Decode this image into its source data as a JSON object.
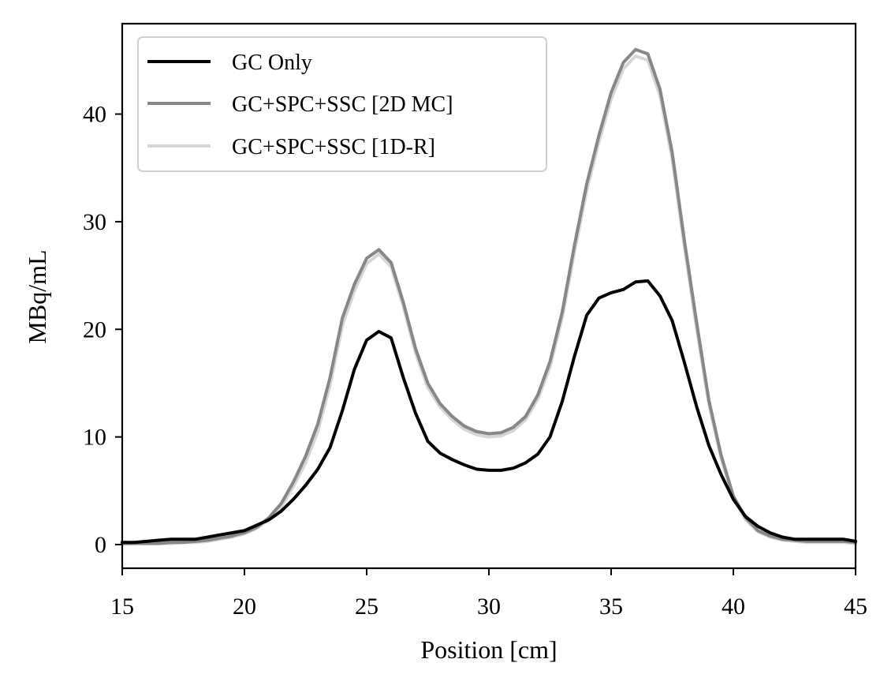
{
  "chart_data": {
    "type": "line",
    "title": "",
    "xlabel": "Position [cm]",
    "ylabel": "MBq/mL",
    "xlim": [
      15,
      45
    ],
    "ylim": [
      -2.2,
      48.4
    ],
    "xticks": [
      15,
      20,
      25,
      30,
      35,
      40,
      45
    ],
    "yticks": [
      0,
      10,
      20,
      30,
      40
    ],
    "grid": false,
    "legend_position": "top-left",
    "series": [
      {
        "name": "GC Only",
        "color": "#000000",
        "x": [
          15,
          15.5,
          16,
          16.5,
          17,
          17.5,
          18,
          18.5,
          19,
          19.5,
          20,
          20.5,
          21,
          21.5,
          22,
          22.5,
          23,
          23.5,
          24,
          24.5,
          25,
          25.5,
          26,
          26.5,
          27,
          27.5,
          28,
          28.5,
          29,
          29.5,
          30,
          30.5,
          31,
          31.5,
          32,
          32.5,
          33,
          33.5,
          34,
          34.5,
          35,
          35.5,
          36,
          36.5,
          37,
          37.5,
          38,
          38.5,
          39,
          39.5,
          40,
          40.5,
          41,
          41.5,
          42,
          42.5,
          43,
          43.5,
          44,
          44.5,
          45
        ],
        "y": [
          0.2,
          0.2,
          0.3,
          0.4,
          0.5,
          0.5,
          0.5,
          0.7,
          0.9,
          1.1,
          1.3,
          1.8,
          2.3,
          3.1,
          4.2,
          5.5,
          7.0,
          9.0,
          12.4,
          16.3,
          19.0,
          19.8,
          19.2,
          15.5,
          12.2,
          9.6,
          8.5,
          7.9,
          7.4,
          7.0,
          6.9,
          6.9,
          7.1,
          7.6,
          8.4,
          10.0,
          13.3,
          17.5,
          21.3,
          22.9,
          23.4,
          23.7,
          24.4,
          24.5,
          23.1,
          20.8,
          16.9,
          12.8,
          9.2,
          6.5,
          4.2,
          2.6,
          1.7,
          1.1,
          0.7,
          0.5,
          0.5,
          0.5,
          0.5,
          0.5,
          0.3
        ]
      },
      {
        "name": "GC+SPC+SSC [2D MC]",
        "color": "#878787",
        "x": [
          15,
          15.5,
          16,
          16.5,
          17,
          17.5,
          18,
          18.5,
          19,
          19.5,
          20,
          20.5,
          21,
          21.5,
          22,
          22.5,
          23,
          23.5,
          24,
          24.5,
          25,
          25.5,
          26,
          26.5,
          27,
          27.5,
          28,
          28.5,
          29,
          29.5,
          30,
          30.5,
          31,
          31.5,
          32,
          32.5,
          33,
          33.5,
          34,
          34.5,
          35,
          35.5,
          36,
          36.5,
          37,
          37.5,
          38,
          38.5,
          39,
          39.5,
          40,
          40.5,
          41,
          41.5,
          42,
          42.5,
          43,
          43.5,
          44,
          44.5,
          45
        ],
        "y": [
          0.1,
          0.1,
          0.1,
          0.1,
          0.2,
          0.2,
          0.3,
          0.4,
          0.6,
          0.8,
          1.1,
          1.6,
          2.5,
          3.8,
          5.8,
          8.2,
          11.2,
          15.5,
          21.0,
          24.2,
          26.6,
          27.4,
          26.2,
          22.5,
          18.2,
          15.0,
          13.1,
          11.9,
          11.0,
          10.5,
          10.3,
          10.4,
          10.9,
          11.9,
          13.9,
          17.0,
          21.6,
          27.8,
          33.5,
          38.0,
          42.0,
          44.8,
          46.0,
          45.6,
          42.3,
          36.4,
          28.2,
          20.6,
          13.4,
          8.3,
          4.5,
          2.5,
          1.3,
          0.8,
          0.5,
          0.4,
          0.3,
          0.3,
          0.3,
          0.3,
          0.2
        ]
      },
      {
        "name": "GC+SPC+SSC [1D-R]",
        "color": "#d6d6d6",
        "x": [
          15,
          15.5,
          16,
          16.5,
          17,
          17.5,
          18,
          18.5,
          19,
          19.5,
          20,
          20.5,
          21,
          21.5,
          22,
          22.5,
          23,
          23.5,
          24,
          24.5,
          25,
          25.5,
          26,
          26.5,
          27,
          27.5,
          28,
          28.5,
          29,
          29.5,
          30,
          30.5,
          31,
          31.5,
          32,
          32.5,
          33,
          33.5,
          34,
          34.5,
          35,
          35.5,
          36,
          36.5,
          37,
          37.5,
          38,
          38.5,
          39,
          39.5,
          40,
          40.5,
          41,
          41.5,
          42,
          42.5,
          43,
          43.5,
          44,
          44.5,
          45
        ],
        "y": [
          0.1,
          0.1,
          0.1,
          0.1,
          0.1,
          0.2,
          0.2,
          0.3,
          0.5,
          0.7,
          1.0,
          1.5,
          2.3,
          3.5,
          5.4,
          7.6,
          10.5,
          14.8,
          20.3,
          23.6,
          26.1,
          27.0,
          25.8,
          22.1,
          17.8,
          14.6,
          12.8,
          11.6,
          10.7,
          10.2,
          10.0,
          10.1,
          10.6,
          11.6,
          13.5,
          16.5,
          21.1,
          27.2,
          32.9,
          37.4,
          41.4,
          44.2,
          45.4,
          45.0,
          41.7,
          35.8,
          27.6,
          20.0,
          13.0,
          8.0,
          4.3,
          2.3,
          1.2,
          0.7,
          0.4,
          0.3,
          0.2,
          0.2,
          0.2,
          0.2,
          0.1
        ]
      }
    ]
  }
}
